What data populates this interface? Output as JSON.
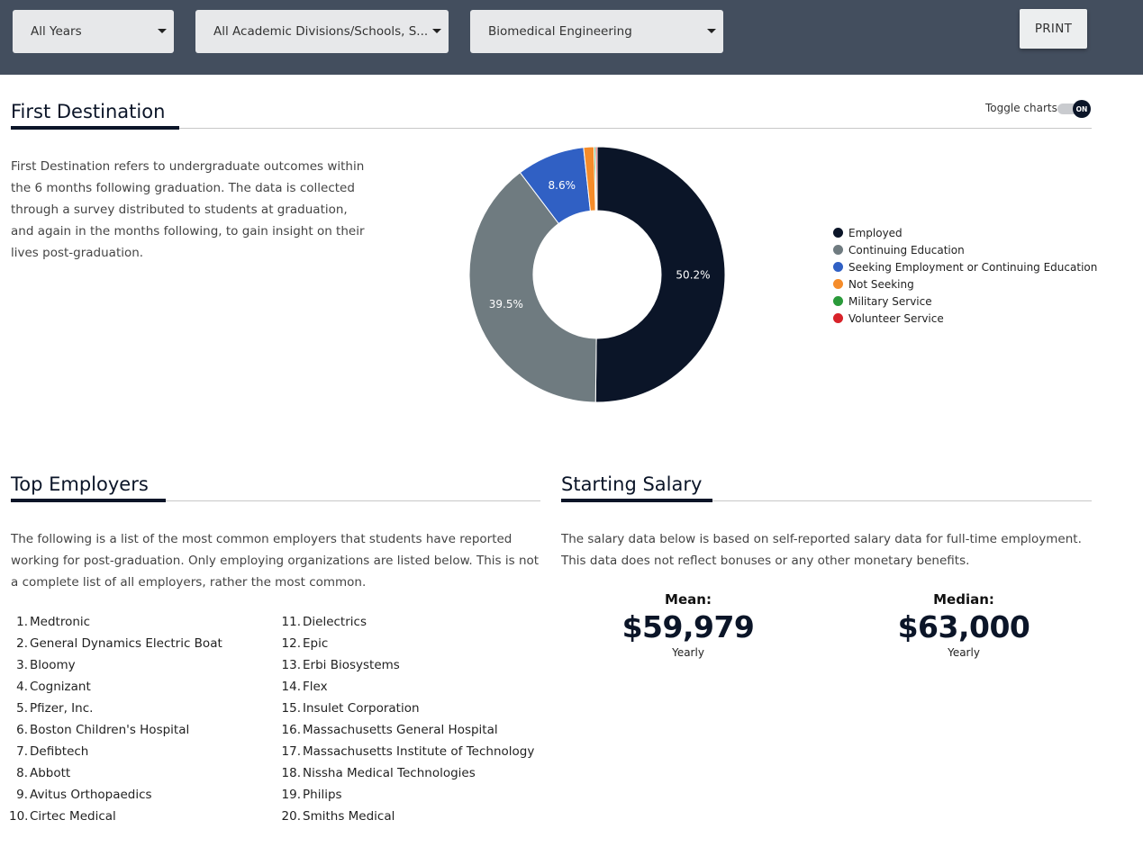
{
  "filters": {
    "year": "All Years",
    "division": "All Academic Divisions/Schools, S...",
    "major": "Biomedical Engineering",
    "print_label": "PRINT"
  },
  "first_destination": {
    "title": "First Destination",
    "toggle_label": "Toggle charts",
    "toggle_state": "ON",
    "description": "First Destination refers to undergraduate outcomes within the 6 months following graduation. The data is collected through a survey distributed to students at graduation, and again in the months following, to gain insight on their lives post-graduation."
  },
  "chart_data": {
    "type": "pie",
    "subtype": "donut",
    "title": "First Destination",
    "legend_position": "right",
    "categories": [
      "Employed",
      "Continuing Education",
      "Seeking Employment or Continuing Education",
      "Not Seeking",
      "Military Service",
      "Volunteer Service"
    ],
    "values": [
      50.2,
      39.5,
      8.6,
      1.3,
      0.2,
      0.2
    ],
    "labels": [
      "50.2%",
      "39.5%",
      "8.6%",
      "",
      "",
      ""
    ],
    "colors": [
      "#0b1528",
      "#6f7b80",
      "#3060c4",
      "#f58c2a",
      "#2a9a3a",
      "#d8232a"
    ]
  },
  "top_employers": {
    "title": "Top Employers",
    "description": "The following is a list of the most common employers that students have reported working for post-graduation. Only employing organizations are listed below. This is not a complete list of all employers, rather the most common.",
    "items": [
      {
        "num": "1.",
        "name": "Medtronic"
      },
      {
        "num": "2.",
        "name": "General Dynamics Electric Boat"
      },
      {
        "num": "3.",
        "name": "Bloomy"
      },
      {
        "num": "4.",
        "name": "Cognizant"
      },
      {
        "num": "5.",
        "name": "Pfizer, Inc."
      },
      {
        "num": "6.",
        "name": "Boston Children's Hospital"
      },
      {
        "num": "7.",
        "name": "Defibtech"
      },
      {
        "num": "8.",
        "name": "Abbott"
      },
      {
        "num": "9.",
        "name": "Avitus Orthopaedics"
      },
      {
        "num": "10.",
        "name": "Cirtec Medical"
      },
      {
        "num": "11.",
        "name": "Dielectrics"
      },
      {
        "num": "12.",
        "name": "Epic"
      },
      {
        "num": "13.",
        "name": "Erbi Biosystems"
      },
      {
        "num": "14.",
        "name": "Flex"
      },
      {
        "num": "15.",
        "name": "Insulet Corporation"
      },
      {
        "num": "16.",
        "name": "Massachusetts General Hospital"
      },
      {
        "num": "17.",
        "name": "Massachusetts Institute of Technology"
      },
      {
        "num": "18.",
        "name": "Nissha Medical Technologies"
      },
      {
        "num": "19.",
        "name": "Philips"
      },
      {
        "num": "20.",
        "name": "Smiths Medical"
      }
    ]
  },
  "starting_salary": {
    "title": "Starting Salary",
    "description": "The salary data below is based on self-reported salary data for full-time employment. This data does not reflect bonuses or any other monetary benefits.",
    "mean": {
      "label": "Mean:",
      "value": "$59,979",
      "unit": "Yearly"
    },
    "median": {
      "label": "Median:",
      "value": "$63,000",
      "unit": "Yearly"
    }
  }
}
